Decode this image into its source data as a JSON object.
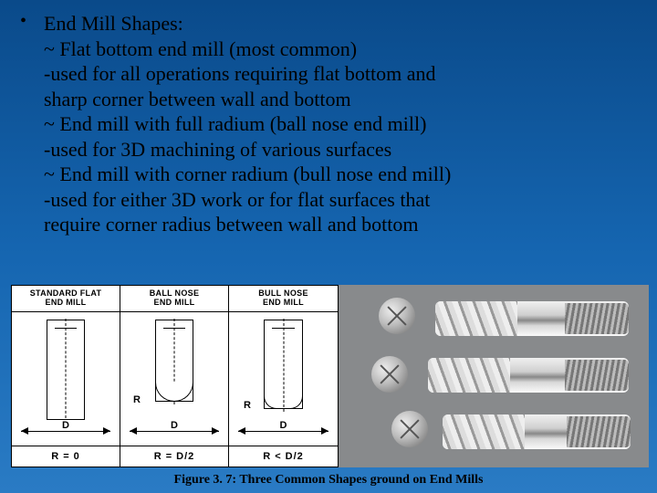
{
  "bullet_glyph": "•",
  "text": {
    "heading": "End Mill Shapes:",
    "l1": "~ Flat bottom end mill (most common)",
    "l2": " -used for all operations requiring flat bottom and",
    "l3": "  sharp corner between wall and bottom",
    "l4": "~ End mill with full radium (ball nose end mill)",
    "l5": " -used for 3D machining of various surfaces",
    "l6": "~ End mill with corner radium (bull nose end mill)",
    "l7": " -used for either 3D work or for flat surfaces that",
    "l8": "  require corner radius between wall and bottom"
  },
  "diagram": {
    "cols": [
      {
        "title": "STANDARD FLAT\nEND MILL",
        "footer": "R = 0",
        "d_label": "D",
        "r_label": ""
      },
      {
        "title": "BALL NOSE\nEND MILL",
        "footer": "R = D/2",
        "d_label": "D",
        "r_label": "R"
      },
      {
        "title": "BULL NOSE\nEND MILL",
        "footer": "R < D/2",
        "d_label": "D",
        "r_label": "R"
      }
    ]
  },
  "caption": "Figure 3. 7: Three Common Shapes ground on End Mills",
  "colors": {
    "bg_top": "#0a4a8a",
    "bg_bottom": "#2a7bc4",
    "photo_bg": "#888a8c"
  }
}
